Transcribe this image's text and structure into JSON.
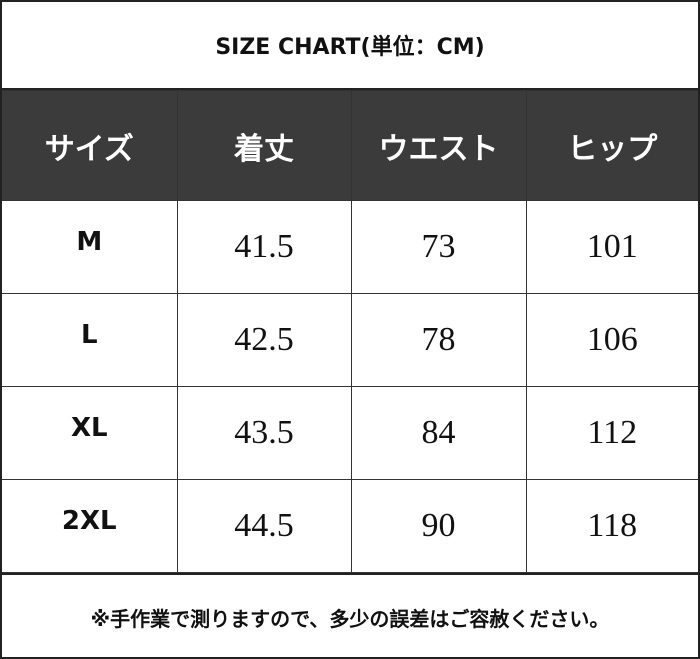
{
  "title": "SIZE CHART(単位：CM)",
  "headers": [
    "サイズ",
    "着丈",
    "ウエスト",
    "ヒップ"
  ],
  "rows": [
    [
      "M",
      "41.5",
      "73",
      "101"
    ],
    [
      "L",
      "42.5",
      "78",
      "106"
    ],
    [
      "XL",
      "43.5",
      "84",
      "112"
    ],
    [
      "2XL",
      "44.5",
      "90",
      "118"
    ]
  ],
  "note": "※手作業で測りますので、多少の誤差はご容赦ください。",
  "colors": {
    "header_bg": "#3b3b3b",
    "header_text": "#ffffff",
    "border": "#222222"
  }
}
